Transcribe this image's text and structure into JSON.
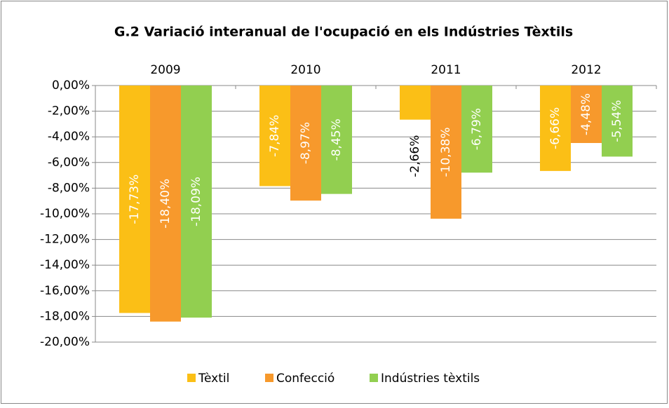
{
  "chart_data": {
    "type": "bar",
    "title": "G.2 Variació interanual de l'ocupació en els Indústries Tèxtils",
    "categories": [
      "2009",
      "2010",
      "2011",
      "2012"
    ],
    "series": [
      {
        "name": "Tèxtil",
        "color": "#fbbf16",
        "values": [
          -17.73,
          -7.84,
          -2.66,
          -6.66
        ],
        "value_labels": [
          "-17,73%",
          "-7,84%",
          "-2,66%",
          "-6,66%"
        ]
      },
      {
        "name": "Confecció",
        "color": "#f7992c",
        "values": [
          -18.4,
          -8.97,
          -10.38,
          -4.48
        ],
        "value_labels": [
          "-18,40%",
          "-8,97%",
          "-10,38%",
          "-4,48%"
        ]
      },
      {
        "name": "Indústries tèxtils",
        "color": "#92cf50",
        "values": [
          -18.09,
          -8.45,
          -6.79,
          -5.54
        ],
        "value_labels": [
          "-18,09%",
          "-8,45%",
          "-6,79%",
          "-5,54%"
        ]
      }
    ],
    "ylim": [
      -20,
      0
    ],
    "yticks": [
      {
        "value": 0,
        "label": "0,00%"
      },
      {
        "value": -2,
        "label": "-2,00%"
      },
      {
        "value": -4,
        "label": "-4,00%"
      },
      {
        "value": -6,
        "label": "-6,00%"
      },
      {
        "value": -8,
        "label": "-8,00%"
      },
      {
        "value": -10,
        "label": "-10,00%"
      },
      {
        "value": -12,
        "label": "-12,00%"
      },
      {
        "value": -14,
        "label": "-14,00%"
      },
      {
        "value": -16,
        "label": "-16,00%"
      },
      {
        "value": -18,
        "label": "-18,00%"
      },
      {
        "value": -20,
        "label": "-20,00%"
      }
    ],
    "grid": true,
    "legend": "bottom"
  }
}
